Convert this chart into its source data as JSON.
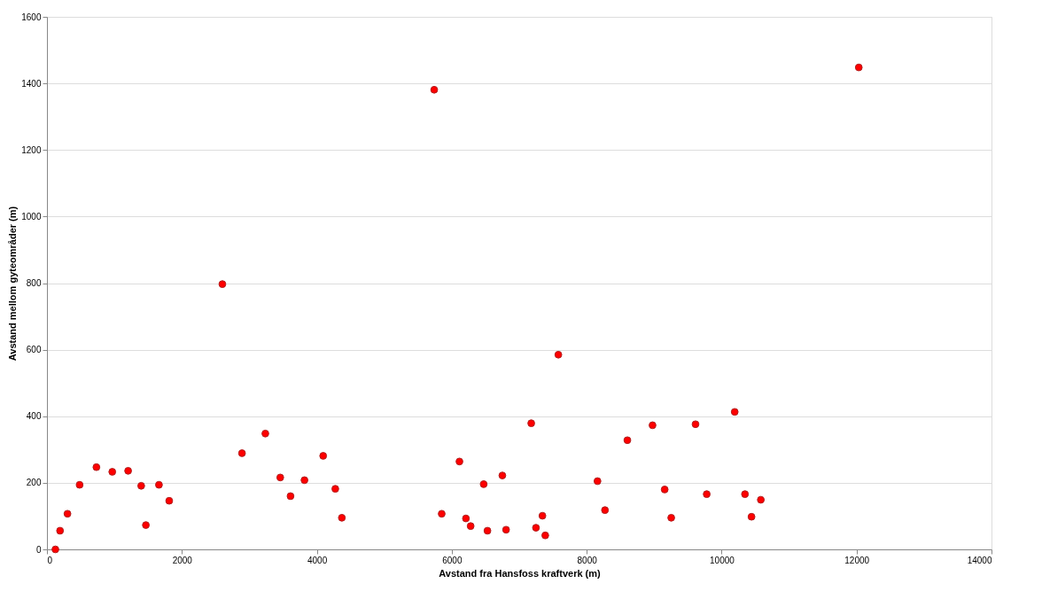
{
  "chart_data": {
    "type": "scatter",
    "xlabel": "Avstand fra Hansfoss kraftverk (m)",
    "ylabel": "Avstand mellom gyteområder (m)",
    "x": [
      125,
      194,
      304,
      484,
      733,
      968,
      1203,
      1397,
      1466,
      1660,
      1812,
      2600,
      2891,
      3237,
      3458,
      3610,
      3817,
      4094,
      4274,
      4371,
      5740,
      5851,
      6114,
      6210,
      6280,
      6473,
      6529,
      6750,
      6805,
      7178,
      7248,
      7344,
      7386,
      7580,
      8160,
      8271,
      8603,
      8976,
      9156,
      9253,
      9613,
      9779,
      10194,
      10346,
      10443,
      10581,
      12033
    ],
    "series": [
      {
        "color": "#ff0000",
        "values": [
          0,
          56,
          107,
          194,
          247,
          233,
          236,
          191,
          73,
          194,
          146,
          797,
          289,
          348,
          216,
          160,
          208,
          281,
          182,
          95,
          1381,
          107,
          264,
          93,
          70,
          196,
          56,
          222,
          59,
          379,
          65,
          101,
          42,
          585,
          205,
          118,
          328,
          373,
          180,
          95,
          376,
          166,
          413,
          166,
          98,
          149,
          1448
        ]
      }
    ],
    "xlim": [
      0,
      14000
    ],
    "xticks": [
      0,
      2000,
      4000,
      6000,
      8000,
      10000,
      12000,
      14000
    ],
    "ylim": [
      0,
      1600
    ],
    "yticks": [
      0,
      200,
      400,
      600,
      800,
      1000,
      1200,
      1400,
      1600
    ],
    "grid": "y",
    "marker": "circle"
  }
}
